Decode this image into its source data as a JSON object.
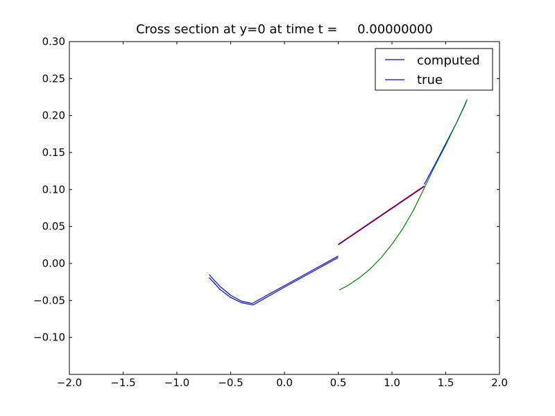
{
  "chart_data": {
    "type": "line",
    "title": "Cross section at y=0 at time t =     0.00000000",
    "xlabel": "",
    "ylabel": "",
    "xlim": [
      -2.0,
      2.0
    ],
    "ylim": [
      -0.15,
      0.3
    ],
    "grid": false,
    "legend_placement": "top-right",
    "x_ticks": [
      -2.0,
      -1.5,
      -1.0,
      -0.5,
      0.0,
      0.5,
      1.0,
      1.5,
      2.0
    ],
    "x_tick_labels": [
      "−2.0",
      "−1.5",
      "−1.0",
      "−0.5",
      "0.0",
      "0.5",
      "1.0",
      "1.5",
      "2.0"
    ],
    "y_ticks": [
      -0.1,
      -0.05,
      0.0,
      0.05,
      0.1,
      0.15,
      0.2,
      0.25,
      0.3
    ],
    "y_tick_labels": [
      "−0.10",
      "−0.05",
      "0.00",
      "0.05",
      "0.10",
      "0.15",
      "0.20",
      "0.25",
      "0.30"
    ],
    "legend": [
      {
        "label": "computed",
        "color": "#0000ff"
      },
      {
        "label": "true",
        "color": "#0000ff"
      }
    ],
    "series": [
      {
        "name": "computed",
        "color": "#0000ff",
        "x": [
          -0.7,
          -0.6,
          -0.5,
          -0.4,
          -0.3,
          0.0,
          0.3,
          0.5
        ],
        "y": [
          -0.015,
          -0.031,
          -0.043,
          -0.051,
          -0.054,
          -0.03,
          -0.006,
          0.01
        ]
      },
      {
        "name": "true",
        "color": "#0000ff",
        "x": [
          -0.7,
          -0.6,
          -0.5,
          -0.4,
          -0.3,
          -0.29,
          0.0,
          0.3,
          0.5
        ],
        "y": [
          -0.019,
          -0.035,
          -0.046,
          -0.053,
          -0.056,
          -0.056,
          -0.032,
          -0.008,
          0.008
        ]
      },
      {
        "color": "#0000ff",
        "x": [
          1.3,
          1.4,
          1.5,
          1.6,
          1.69
        ],
        "y": [
          0.107,
          0.134,
          0.162,
          0.19,
          0.218
        ]
      },
      {
        "color": "#008000",
        "x": [
          0.51,
          0.6,
          0.7,
          0.8,
          0.9,
          1.0,
          1.1,
          1.2,
          1.3,
          1.4,
          1.5,
          1.6,
          1.7
        ],
        "y": [
          -0.036,
          -0.029,
          -0.019,
          -0.007,
          0.008,
          0.026,
          0.047,
          0.072,
          0.102,
          0.132,
          0.16,
          0.19,
          0.222
        ]
      },
      {
        "color": "#ff0000",
        "x": [
          0.5,
          1.3
        ],
        "y": [
          0.026,
          0.105
        ]
      },
      {
        "color": "#0000ff",
        "x": [
          0.5,
          1.3
        ],
        "y": [
          0.025,
          0.104
        ]
      }
    ]
  }
}
